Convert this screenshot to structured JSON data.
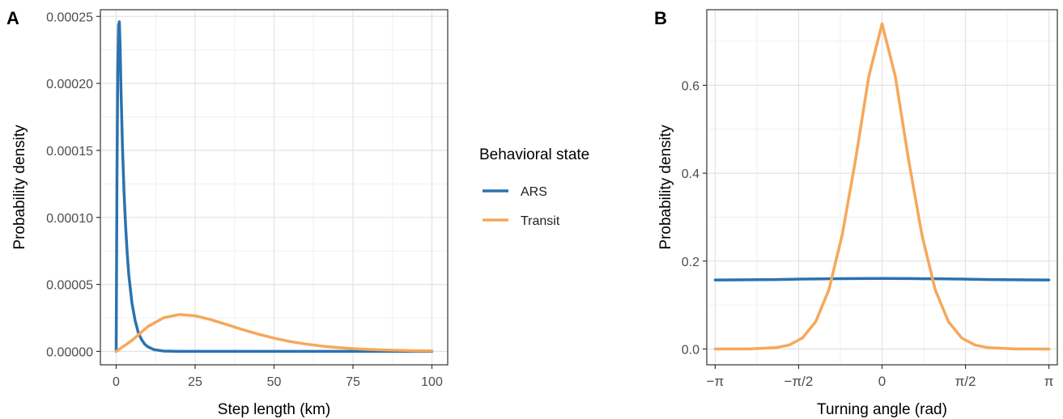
{
  "chart_data": [
    {
      "panel_label": "A",
      "type": "line",
      "xlabel": "Step length (km)",
      "ylabel": "Probability density",
      "xlim": [
        -5,
        105
      ],
      "ylim": [
        -1e-05,
        0.000255
      ],
      "x_ticks": [
        0,
        25,
        50,
        75,
        100
      ],
      "x_tick_labels": [
        "0",
        "25",
        "50",
        "75",
        "100"
      ],
      "y_ticks": [
        0,
        5e-05,
        0.0001,
        0.00015,
        0.0002,
        0.00025
      ],
      "y_tick_labels": [
        "0.00000",
        "0.00005",
        "0.00010",
        "0.00015",
        "0.00020",
        "0.00025"
      ],
      "grid": true,
      "series": [
        {
          "name": "ARS",
          "color": "#2b72b0",
          "x": [
            0,
            0.25,
            0.5,
            0.75,
            1,
            1.25,
            1.5,
            2,
            2.5,
            3,
            3.5,
            4,
            5,
            6,
            7,
            8,
            9,
            10,
            12,
            15,
            20,
            30,
            50,
            75,
            100
          ],
          "y": [
            0,
            0.00013,
            0.00021,
            0.000243,
            0.000246,
            0.000228,
            0.000198,
            0.000152,
            0.000118,
            9.3e-05,
            7.3e-05,
            5.7e-05,
            3.6e-05,
            2.3e-05,
            1.4e-05,
            9e-06,
            5.5e-06,
            3.5e-06,
            1.3e-06,
            3e-07,
            0,
            0,
            0,
            0,
            0
          ]
        },
        {
          "name": "Transit",
          "color": "#f5a85a",
          "x": [
            0,
            5,
            10,
            15,
            20,
            25,
            30,
            35,
            40,
            45,
            50,
            55,
            60,
            65,
            70,
            75,
            80,
            85,
            90,
            95,
            100
          ],
          "y": [
            0,
            8.2e-06,
            1.85e-05,
            2.51e-05,
            2.75e-05,
            2.66e-05,
            2.37e-05,
            2.01e-05,
            1.63e-05,
            1.29e-05,
            9.9e-06,
            7.4e-06,
            5.5e-06,
            4e-06,
            2.9e-06,
            2.1e-06,
            1.5e-06,
            1.1e-06,
            8e-07,
            5e-07,
            4e-07
          ]
        }
      ]
    },
    {
      "panel_label": "B",
      "type": "line",
      "xlabel": "Turning angle (rad)",
      "ylabel": "Probability density",
      "xlim": [
        -3.3,
        3.3
      ],
      "ylim": [
        -0.036,
        0.772
      ],
      "x_ticks": [
        -3.14159,
        -1.5708,
        0,
        1.5708,
        3.14159
      ],
      "x_tick_labels": [
        "−π",
        "−π/2",
        "0",
        "π/2",
        "π"
      ],
      "y_ticks": [
        0,
        0.2,
        0.4,
        0.6
      ],
      "y_tick_labels": [
        "0.0",
        "0.2",
        "0.4",
        "0.6"
      ],
      "grid": true,
      "series": [
        {
          "name": "ARS",
          "color": "#2b72b0",
          "x": [
            -3.14159,
            -2.5,
            -2,
            -1.5,
            -1,
            -0.5,
            0,
            0.5,
            1,
            1.5,
            2,
            2.5,
            3.14159
          ],
          "y": [
            0.157,
            0.1575,
            0.158,
            0.159,
            0.1597,
            0.1602,
            0.1605,
            0.1602,
            0.1597,
            0.159,
            0.158,
            0.1575,
            0.157
          ]
        },
        {
          "name": "Transit",
          "color": "#f5a85a",
          "x": [
            -3.14159,
            -2.5,
            -2,
            -1.75,
            -1.5,
            -1.25,
            -1,
            -0.75,
            -0.5,
            -0.25,
            0,
            0.25,
            0.5,
            0.75,
            1,
            1.25,
            1.5,
            1.75,
            2,
            2.5,
            3.14159
          ],
          "y": [
            0,
            0.0002,
            0.003,
            0.009,
            0.025,
            0.062,
            0.135,
            0.26,
            0.43,
            0.62,
            0.74,
            0.62,
            0.43,
            0.26,
            0.135,
            0.062,
            0.025,
            0.009,
            0.003,
            0.0002,
            0
          ]
        }
      ]
    }
  ],
  "legend": {
    "title": "Behavioral state",
    "entries": [
      {
        "label": "ARS",
        "color": "#2b72b0"
      },
      {
        "label": "Transit",
        "color": "#f5a85a"
      }
    ]
  }
}
